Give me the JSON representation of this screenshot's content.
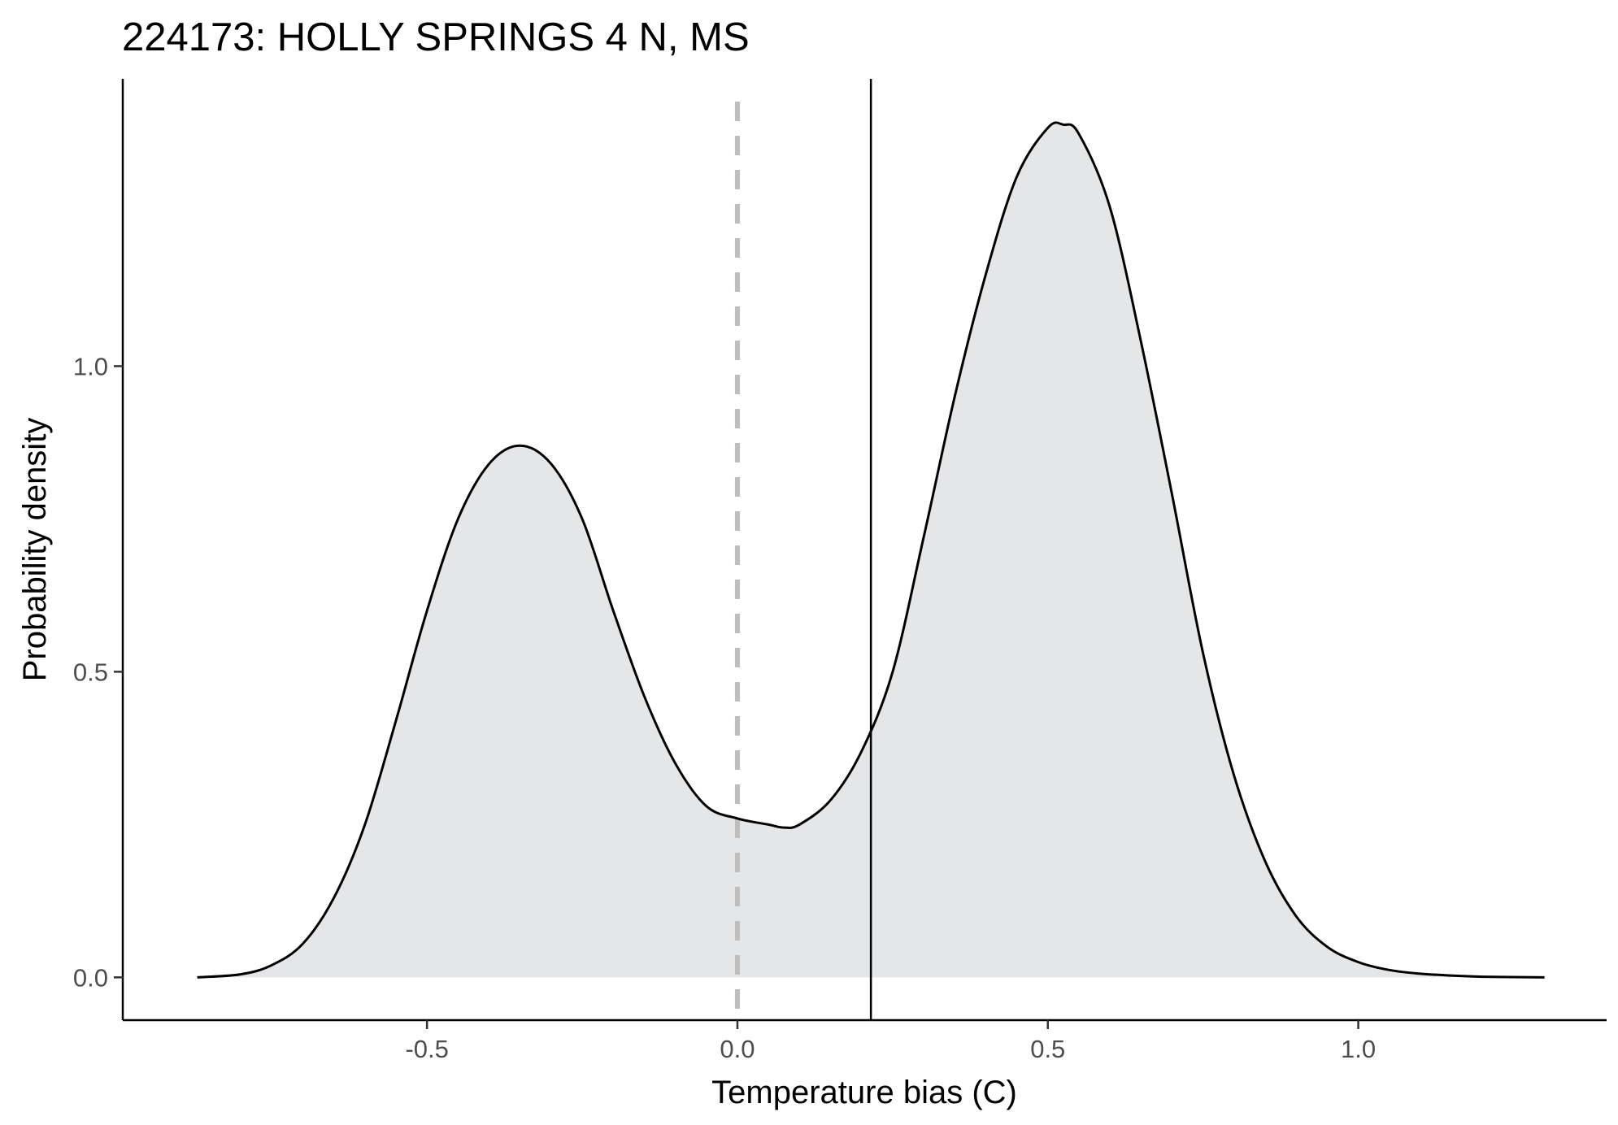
{
  "chart_data": {
    "type": "area",
    "title": "224173: HOLLY SPRINGS 4 N, MS",
    "xlabel": "Temperature bias (C)",
    "ylabel": "Probability density",
    "xlim": [
      -0.99,
      1.4
    ],
    "ylim": [
      -0.07,
      1.47
    ],
    "x_ticks": [
      -0.5,
      0.0,
      0.5,
      1.0
    ],
    "x_tick_labels": [
      "-0.5",
      "0.0",
      "0.5",
      "1.0"
    ],
    "y_ticks": [
      0.0,
      0.5,
      1.0
    ],
    "y_tick_labels": [
      "0.0",
      "0.5",
      "1.0"
    ],
    "grid": false,
    "legend": "none",
    "reference_lines": [
      {
        "axis": "x",
        "value": 0.0,
        "style": "dashed",
        "color": "#bebebe"
      },
      {
        "axis": "x",
        "value": 0.215,
        "style": "solid",
        "color": "#000000"
      }
    ],
    "fill_color": "#e5e6e7",
    "line_color": "#000000",
    "series": [
      {
        "x": [
          -0.87,
          -0.8,
          -0.75,
          -0.7,
          -0.65,
          -0.6,
          -0.55,
          -0.5,
          -0.45,
          -0.4,
          -0.35,
          -0.3,
          -0.25,
          -0.2,
          -0.15,
          -0.1,
          -0.05,
          0.0,
          0.05,
          0.075,
          0.1,
          0.15,
          0.2,
          0.25,
          0.3,
          0.35,
          0.4,
          0.45,
          0.5,
          0.525,
          0.55,
          0.6,
          0.65,
          0.7,
          0.75,
          0.8,
          0.85,
          0.9,
          0.95,
          1.0,
          1.05,
          1.1,
          1.15,
          1.2,
          1.3
        ],
        "y": [
          0.0,
          0.005,
          0.02,
          0.055,
          0.13,
          0.25,
          0.42,
          0.6,
          0.75,
          0.84,
          0.87,
          0.84,
          0.75,
          0.6,
          0.46,
          0.35,
          0.28,
          0.26,
          0.25,
          0.245,
          0.25,
          0.29,
          0.37,
          0.5,
          0.72,
          0.95,
          1.15,
          1.31,
          1.39,
          1.395,
          1.38,
          1.26,
          1.04,
          0.79,
          0.53,
          0.33,
          0.19,
          0.1,
          0.05,
          0.025,
          0.012,
          0.006,
          0.003,
          0.001,
          0.0
        ]
      }
    ]
  }
}
